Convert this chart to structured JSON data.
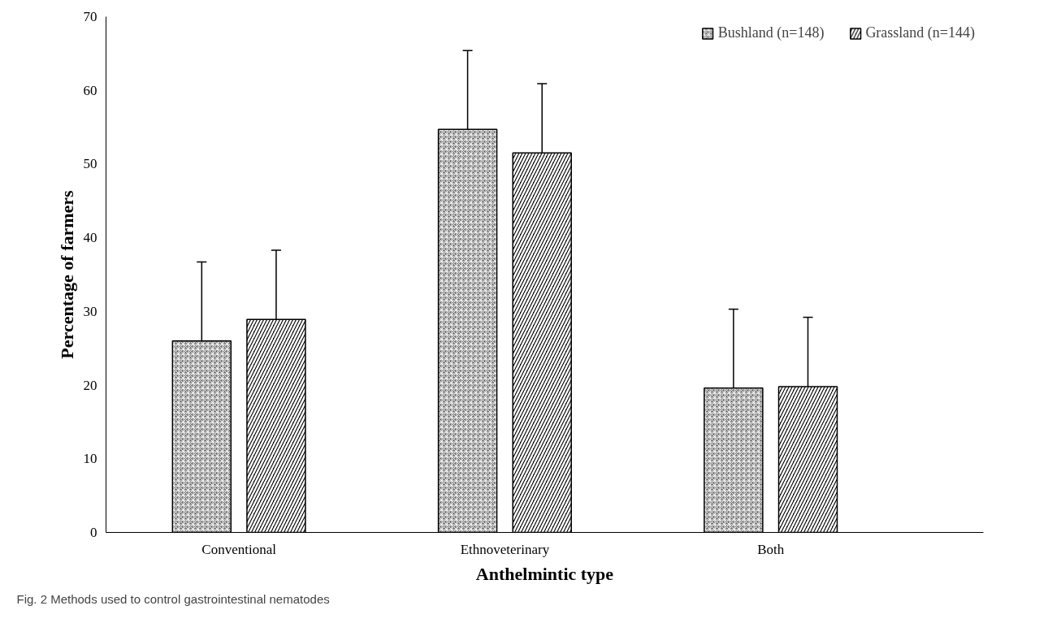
{
  "chart_data": {
    "type": "bar",
    "xlabel": "Anthelmintic type",
    "ylabel": "Percentage of farmers",
    "categories": [
      "Conventional",
      "Ethnoveterinary",
      "Both"
    ],
    "series": [
      {
        "name": "Bushland (n=148)",
        "color": "#6e6e6e",
        "values": [
          26.0,
          54.7,
          19.6
        ],
        "errors": [
          10.7,
          10.7,
          10.7
        ]
      },
      {
        "name": "Grassland (n=144)",
        "color": "#000000",
        "values": [
          28.9,
          51.5,
          19.8
        ],
        "errors": [
          9.4,
          9.4,
          9.4
        ]
      }
    ],
    "ylim": [
      0,
      70
    ],
    "yticks": [
      0,
      10,
      20,
      30,
      40,
      50,
      60,
      70
    ],
    "grid": false,
    "legend": "top right",
    "annotations": [
      "Fig. 2 Methods used to control gastrointestinal nematodes"
    ]
  }
}
